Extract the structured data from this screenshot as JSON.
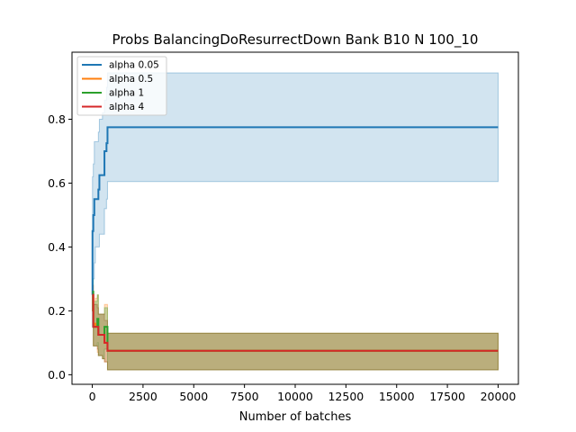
{
  "chart_data": {
    "type": "line",
    "title": "Probs BalancingDoResurrectDown Bank B10 N 100_10",
    "xlabel": "Number of batches",
    "ylabel": "",
    "xlim": [
      -1000,
      21000
    ],
    "ylim": [
      -0.03,
      1.01
    ],
    "xticks": [
      0,
      2500,
      5000,
      7500,
      10000,
      12500,
      15000,
      17500,
      20000
    ],
    "yticks": [
      0.0,
      0.2,
      0.4,
      0.6,
      0.8
    ],
    "ytick_labels": [
      "0.0",
      "0.2",
      "0.4",
      "0.6",
      "0.8"
    ],
    "legend_position": "top-left",
    "grid": false,
    "series": [
      {
        "name": "alpha 0.05",
        "color": "#1f77b4",
        "band_color": "#1f77b4",
        "x": [
          0,
          10,
          50,
          100,
          150,
          300,
          350,
          500,
          600,
          700,
          750,
          20000
        ],
        "y": [
          0.25,
          0.45,
          0.5,
          0.55,
          0.55,
          0.58,
          0.625,
          0.625,
          0.7,
          0.725,
          0.775,
          0.775
        ],
        "lower": [
          0.15,
          0.25,
          0.3,
          0.35,
          0.4,
          0.4,
          0.44,
          0.44,
          0.52,
          0.55,
          0.605,
          0.605
        ],
        "upper": [
          0.35,
          0.62,
          0.66,
          0.73,
          0.73,
          0.76,
          0.8,
          0.82,
          0.86,
          0.9,
          0.945,
          0.945
        ]
      },
      {
        "name": "alpha 0.5",
        "color": "#ff7f0e",
        "band_color": "#ff7f0e",
        "x": [
          0,
          50,
          150,
          250,
          300,
          500,
          600,
          750,
          20000
        ],
        "y": [
          0.25,
          0.16,
          0.15,
          0.15,
          0.125,
          0.125,
          0.1,
          0.075,
          0.075
        ],
        "lower": [
          0.2,
          0.09,
          0.09,
          0.07,
          0.06,
          0.05,
          0.04,
          0.015,
          0.015
        ],
        "upper": [
          0.28,
          0.23,
          0.24,
          0.25,
          0.19,
          0.19,
          0.22,
          0.13,
          0.13
        ]
      },
      {
        "name": "alpha 1",
        "color": "#2ca02c",
        "band_color": "#2ca02c",
        "x": [
          0,
          50,
          150,
          250,
          300,
          500,
          600,
          750,
          20000
        ],
        "y": [
          0.26,
          0.15,
          0.15,
          0.175,
          0.125,
          0.125,
          0.15,
          0.075,
          0.075
        ],
        "lower": [
          0.2,
          0.09,
          0.09,
          0.1,
          0.06,
          0.05,
          0.08,
          0.015,
          0.015
        ],
        "upper": [
          0.3,
          0.22,
          0.23,
          0.25,
          0.19,
          0.19,
          0.21,
          0.13,
          0.13
        ]
      },
      {
        "name": "alpha 4",
        "color": "#d62728",
        "band_color": "#8c4a1a",
        "x": [
          0,
          50,
          150,
          250,
          300,
          500,
          600,
          750,
          20000
        ],
        "y": [
          0.25,
          0.15,
          0.15,
          0.15,
          0.125,
          0.125,
          0.1,
          0.075,
          0.075
        ],
        "lower": [
          0.2,
          0.09,
          0.09,
          0.08,
          0.06,
          0.05,
          0.04,
          0.015,
          0.015
        ],
        "upper": [
          0.28,
          0.22,
          0.22,
          0.21,
          0.19,
          0.19,
          0.17,
          0.13,
          0.13
        ]
      }
    ]
  }
}
